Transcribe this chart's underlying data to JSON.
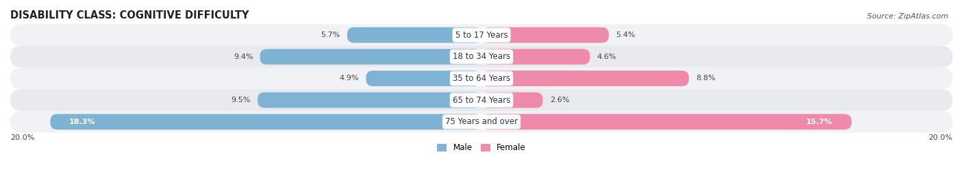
{
  "title": "DISABILITY CLASS: COGNITIVE DIFFICULTY",
  "source": "Source: ZipAtlas.com",
  "categories": [
    "5 to 17 Years",
    "18 to 34 Years",
    "35 to 64 Years",
    "65 to 74 Years",
    "75 Years and over"
  ],
  "male_values": [
    5.7,
    9.4,
    4.9,
    9.5,
    18.3
  ],
  "female_values": [
    5.4,
    4.6,
    8.8,
    2.6,
    15.7
  ],
  "max_value": 20.0,
  "male_color": "#7fb3d3",
  "female_color": "#f08aab",
  "row_bg_color_odd": "#f0f2f5",
  "row_bg_color_even": "#e8eaed",
  "title_fontsize": 10.5,
  "label_fontsize": 8.5,
  "value_fontsize": 8.0,
  "source_fontsize": 8.0,
  "background_color": "#ffffff"
}
